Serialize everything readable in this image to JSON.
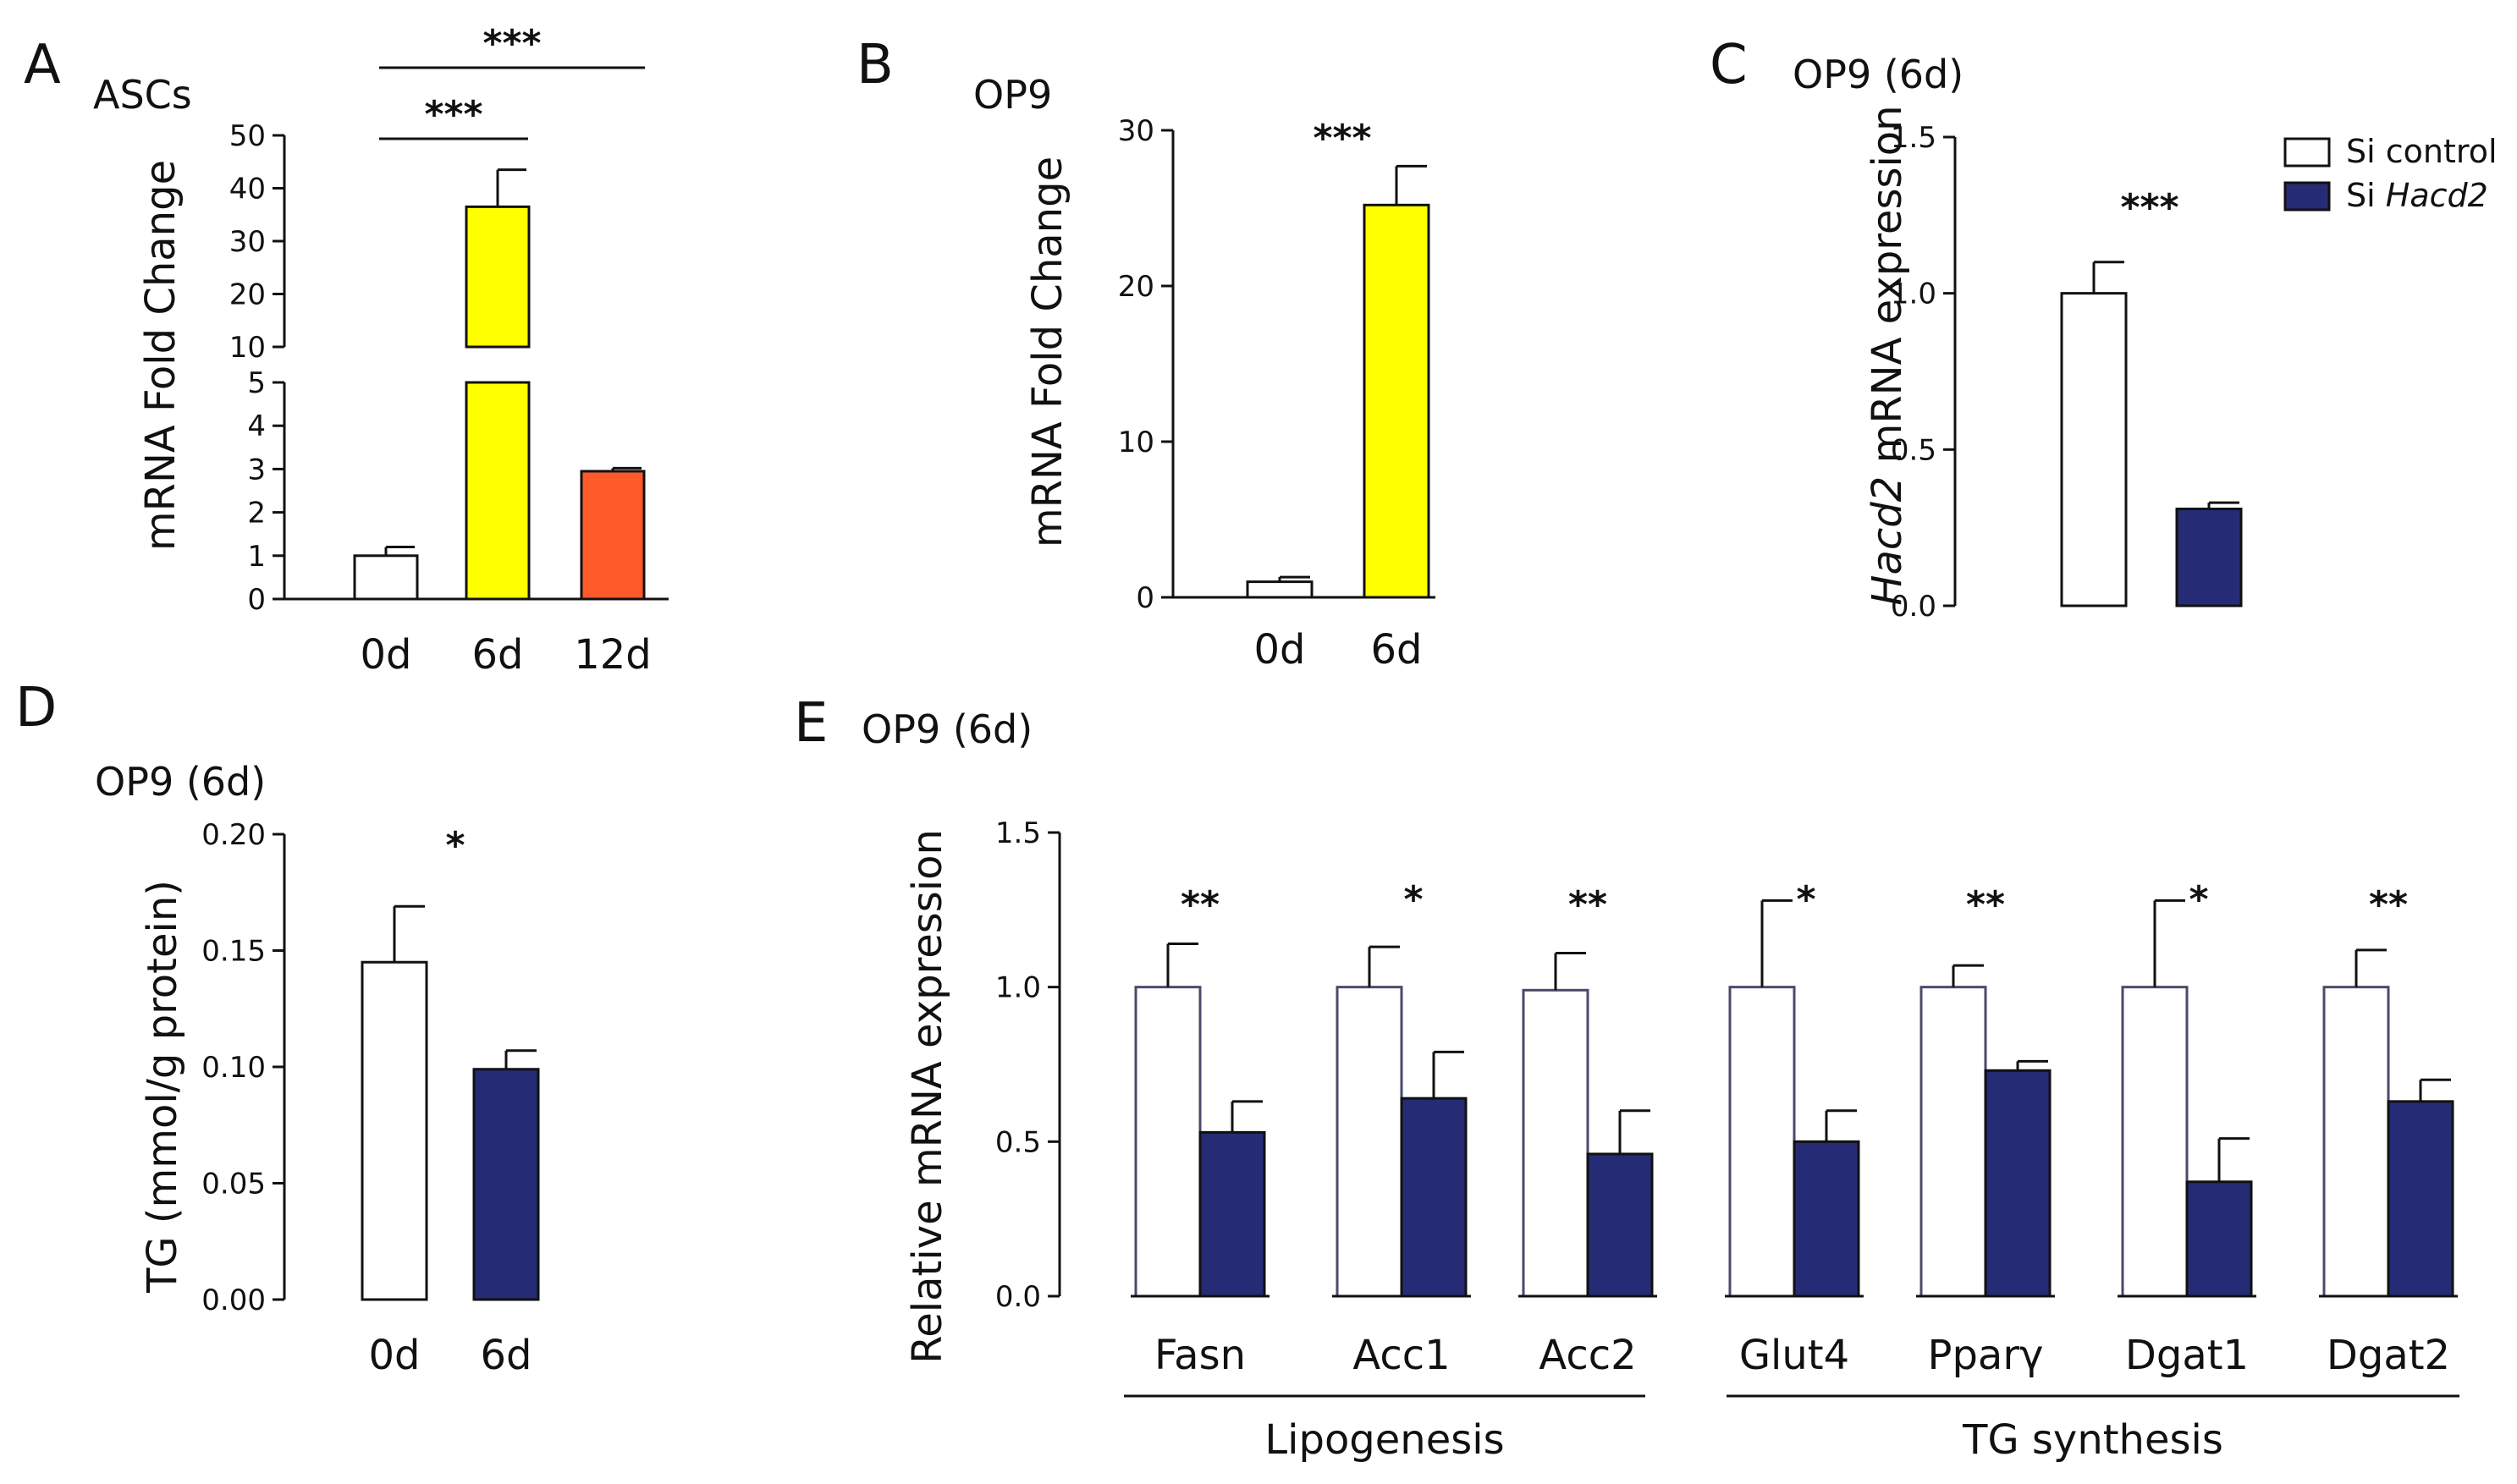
{
  "colors": {
    "white": "#ffffff",
    "yellow": "#ffff00",
    "orange": "#ff5a2a",
    "navy": "#262b75",
    "stroke": "#111111",
    "control_stroke": "#4a4a6a"
  },
  "legend": [
    {
      "prefix": "Si",
      "label": "control",
      "italic": false,
      "color": "white"
    },
    {
      "prefix": "Si",
      "label": "Hacd2",
      "italic": true,
      "color": "navy"
    }
  ],
  "chart_data": [
    {
      "id": "A",
      "letter": "A",
      "title": "ASCs",
      "type": "bar",
      "ylabel": "mRNA Fold Change",
      "categories": [
        "0d",
        "6d",
        "12d"
      ],
      "values": [
        1.0,
        36.5,
        2.95
      ],
      "errors": [
        0.2,
        7.0,
        0.07
      ],
      "colors": [
        "white",
        "yellow",
        "orange"
      ],
      "y_break": [
        5,
        10
      ],
      "ylim_lower": [
        0,
        5
      ],
      "ylim_upper": [
        10,
        50
      ],
      "ticks_lower": [
        "0",
        "1",
        "2",
        "3",
        "4",
        "5"
      ],
      "ticks_upper": [
        "10",
        "20",
        "30",
        "40",
        "50"
      ],
      "comparisons": [
        {
          "from": "0d",
          "to": "6d",
          "label": "***"
        },
        {
          "from": "0d",
          "to": "12d",
          "label": "***"
        }
      ]
    },
    {
      "id": "B",
      "letter": "B",
      "title": "OP9",
      "type": "bar",
      "ylabel": "mRNA Fold Change",
      "categories": [
        "0d",
        "6d"
      ],
      "values": [
        1.0,
        25.2
      ],
      "errors": [
        0.3,
        2.5
      ],
      "colors": [
        "white",
        "yellow"
      ],
      "ylim": [
        0,
        30
      ],
      "ticks": [
        "0",
        "10",
        "20",
        "30"
      ],
      "stars": [
        {
          "over": "6d",
          "label": "***"
        }
      ]
    },
    {
      "id": "C",
      "letter": "C",
      "title": "OP9 (6d)",
      "type": "bar",
      "ylabel_italic": "Hacd2",
      "ylabel_rest": " mRNA expression",
      "categories": [
        "Si control",
        "Si Hacd2"
      ],
      "values": [
        1.0,
        0.31
      ],
      "errors": [
        0.1,
        0.02
      ],
      "colors": [
        "white",
        "navy"
      ],
      "ylim": [
        0,
        1.5
      ],
      "ticks": [
        "0.0",
        "0.5",
        "1.0",
        "1.5"
      ],
      "stars": [
        {
          "over": "group",
          "label": "***"
        }
      ]
    },
    {
      "id": "D",
      "letter": "D",
      "title": "OP9 (6d)",
      "type": "bar",
      "ylabel": "TG (mmol/g protein)",
      "categories": [
        "0d",
        "6d"
      ],
      "values": [
        0.145,
        0.099
      ],
      "errors": [
        0.024,
        0.008
      ],
      "colors": [
        "white",
        "navy"
      ],
      "ylim": [
        0,
        0.2
      ],
      "ticks": [
        "0.00",
        "0.05",
        "0.10",
        "0.15",
        "0.20"
      ],
      "stars": [
        {
          "over": "group",
          "label": "*"
        }
      ]
    },
    {
      "id": "E",
      "letter": "E",
      "title": "OP9 (6d)",
      "type": "bar",
      "ylabel": "Relative mRNA expression",
      "categories": [
        "Fasn",
        "Acc1",
        "Acc2",
        "Glut4",
        "Pparγ",
        "Dgat1",
        "Dgat2"
      ],
      "series": [
        {
          "name": "Si control",
          "color": "white",
          "values": [
            1.0,
            1.0,
            0.99,
            1.0,
            1.0,
            1.0,
            1.0
          ],
          "errors": [
            0.14,
            0.13,
            0.12,
            0.28,
            0.07,
            0.28,
            0.12
          ]
        },
        {
          "name": "Si Hacd2",
          "color": "navy",
          "values": [
            0.53,
            0.64,
            0.46,
            0.5,
            0.73,
            0.37,
            0.63
          ],
          "errors": [
            0.1,
            0.15,
            0.14,
            0.1,
            0.03,
            0.14,
            0.07
          ]
        }
      ],
      "stars": [
        "**",
        "*",
        "**",
        "*",
        "**",
        "*",
        "**"
      ],
      "ylim": [
        0,
        1.5
      ],
      "ticks": [
        "0.0",
        "0.5",
        "1.0",
        "1.5"
      ],
      "groups": [
        {
          "label": "Lipogenesis",
          "members": [
            "Fasn",
            "Acc1",
            "Acc2"
          ]
        },
        {
          "label": "TG synthesis",
          "members": [
            "Glut4",
            "Pparγ",
            "Dgat1",
            "Dgat2"
          ]
        }
      ]
    }
  ]
}
